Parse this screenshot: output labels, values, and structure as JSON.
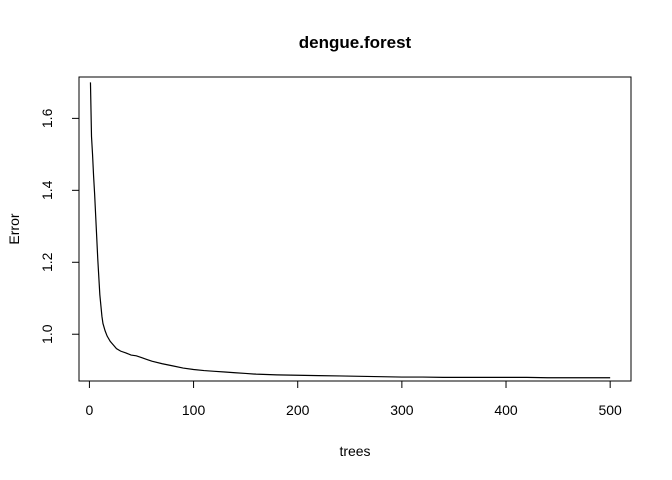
{
  "chart_data": {
    "type": "line",
    "title": "dengue.forest",
    "xlabel": "trees",
    "ylabel": "Error",
    "xlim": [
      -10,
      520
    ],
    "ylim": [
      0.87,
      1.715
    ],
    "xticks": [
      0,
      100,
      200,
      300,
      400,
      500
    ],
    "yticks": [
      1.0,
      1.2,
      1.4,
      1.6
    ],
    "ytick_labels": [
      "1.0",
      "1.2",
      "1.4",
      "1.6"
    ],
    "grid": false,
    "legend": "none",
    "line_color": "#000000",
    "series": [
      {
        "x": [
          1,
          2,
          3,
          4,
          5,
          6,
          7,
          8,
          9,
          10,
          11,
          12,
          13,
          14,
          15,
          17,
          20,
          23,
          26,
          30,
          35,
          40,
          45,
          50,
          55,
          60,
          70,
          80,
          90,
          100,
          110,
          120,
          130,
          140,
          150,
          160,
          170,
          180,
          200,
          220,
          240,
          260,
          280,
          300,
          320,
          340,
          360,
          380,
          400,
          420,
          440,
          460,
          480,
          500
        ],
        "y": [
          1.7,
          1.55,
          1.5,
          1.44,
          1.39,
          1.33,
          1.27,
          1.21,
          1.16,
          1.11,
          1.08,
          1.05,
          1.03,
          1.02,
          1.01,
          0.995,
          0.98,
          0.97,
          0.96,
          0.953,
          0.948,
          0.942,
          0.94,
          0.935,
          0.93,
          0.925,
          0.918,
          0.912,
          0.906,
          0.902,
          0.899,
          0.897,
          0.895,
          0.893,
          0.891,
          0.889,
          0.888,
          0.887,
          0.886,
          0.885,
          0.884,
          0.883,
          0.882,
          0.881,
          0.881,
          0.88,
          0.88,
          0.88,
          0.88,
          0.88,
          0.879,
          0.879,
          0.879,
          0.879
        ]
      }
    ]
  }
}
